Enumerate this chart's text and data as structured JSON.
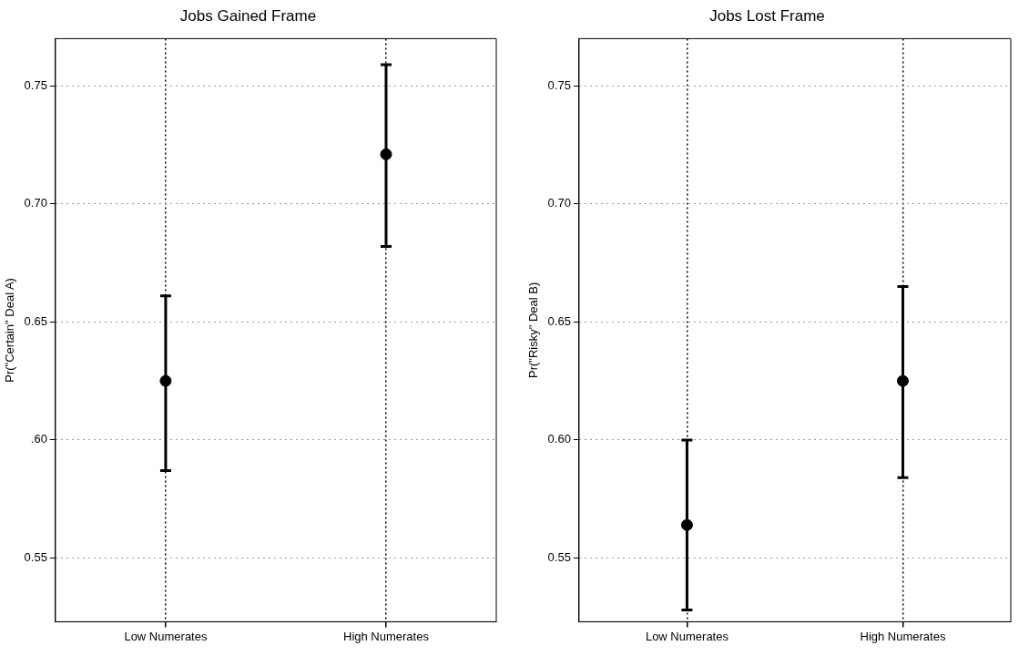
{
  "chart_data": [
    {
      "type": "scatter",
      "title": "Jobs Gained Frame",
      "ylabel": "Pr(\"Certain\" Deal A)",
      "categories": [
        "Low Numerates",
        "High Numerates"
      ],
      "values": [
        0.625,
        0.721
      ],
      "errors": [
        [
          0.587,
          0.661
        ],
        [
          0.682,
          0.759
        ]
      ],
      "color": "#000000",
      "marker": "circle",
      "ylim": [
        0.523,
        0.77
      ],
      "yticks": [
        {
          "value": 0.55,
          "label": "0.55"
        },
        {
          "value": 0.6,
          "label": ".60"
        },
        {
          "value": 0.65,
          "label": "0.65"
        },
        {
          "value": 0.7,
          "label": "0.70"
        },
        {
          "value": 0.75,
          "label": "0.75"
        }
      ],
      "grid": true
    },
    {
      "type": "scatter",
      "title": "Jobs Lost Frame",
      "ylabel": "Pr(\"Risky\" Deal B)",
      "categories": [
        "Low Numerates",
        "High Numerates"
      ],
      "values": [
        0.564,
        0.625
      ],
      "errors": [
        [
          0.528,
          0.6
        ],
        [
          0.584,
          0.665
        ]
      ],
      "color": "#000000",
      "marker": "circle",
      "ylim": [
        0.523,
        0.77
      ],
      "yticks": [
        {
          "value": 0.55,
          "label": "0.55"
        },
        {
          "value": 0.6,
          "label": "0.60"
        },
        {
          "value": 0.65,
          "label": "0.65"
        },
        {
          "value": 0.7,
          "label": "0.70"
        },
        {
          "value": 0.75,
          "label": "0.75"
        }
      ],
      "grid": true
    }
  ]
}
